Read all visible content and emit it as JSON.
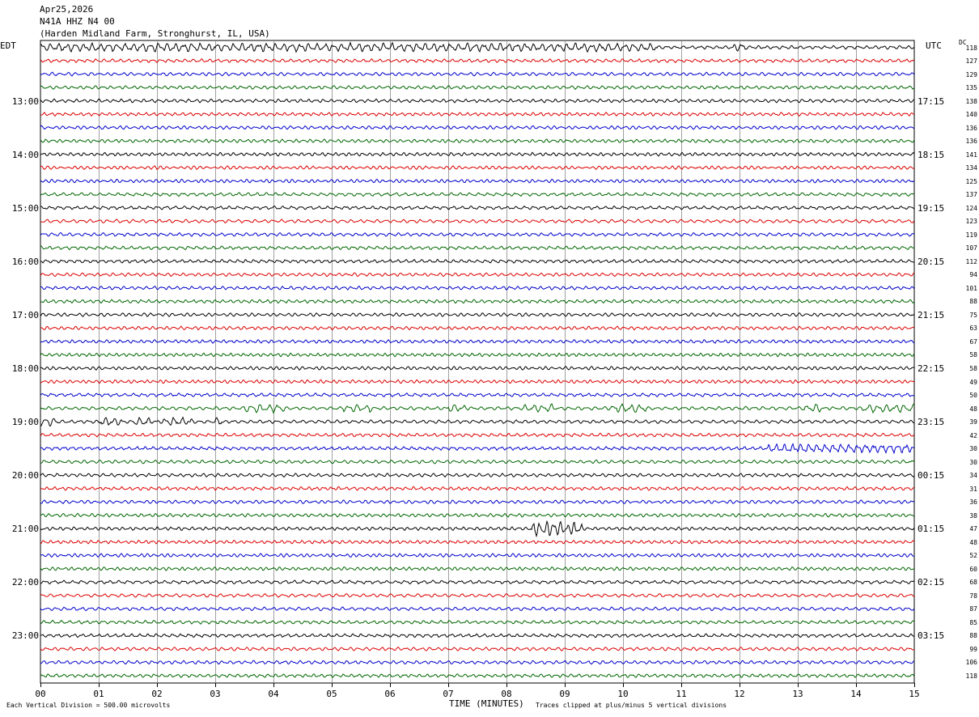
{
  "header": {
    "date": "Apr25,2026",
    "station": "N41A HHZ N4 00",
    "location": "(Harden Midland Farm, Stronghurst, IL, USA)"
  },
  "left_timezone": "EDT",
  "right_timezone": "UTC",
  "dc_label": "DC",
  "left_hours": [
    "13:00",
    "14:00",
    "15:00",
    "16:00",
    "17:00",
    "18:00",
    "19:00",
    "20:00",
    "21:00",
    "22:00",
    "23:00"
  ],
  "right_hours": [
    "17:15",
    "18:15",
    "19:15",
    "20:15",
    "21:15",
    "22:15",
    "23:15",
    "00:15",
    "01:15",
    "02:15",
    "03:15"
  ],
  "dc_values": [
    "118",
    "127",
    "129",
    "135",
    "138",
    "140",
    "136",
    "136",
    "141",
    "134",
    "125",
    "137",
    "124",
    "123",
    "119",
    "107",
    "112",
    "94",
    "101",
    "88",
    "75",
    "63",
    "67",
    "58",
    "58",
    "49",
    "50",
    "48",
    "39",
    "42",
    "30",
    "30",
    "34",
    "31",
    "36",
    "38",
    "47",
    "48",
    "52",
    "60",
    "68",
    "78",
    "87",
    "85",
    "88",
    "99",
    "106",
    "118"
  ],
  "x_ticks": [
    "00",
    "01",
    "02",
    "03",
    "04",
    "05",
    "06",
    "07",
    "08",
    "09",
    "10",
    "11",
    "12",
    "13",
    "14",
    "15"
  ],
  "footer": {
    "scale_note": "Each Vertical Division =  500.00 microvolts",
    "x_axis_label": "TIME (MINUTES)",
    "clip_note": "Traces clipped at plus/minus 5 vertical divisions"
  },
  "colors": {
    "trace_cycle": [
      "#000000",
      "#dd0000",
      "#0000cc",
      "#006600"
    ],
    "grid": "#888888"
  },
  "chart_data": {
    "type": "line",
    "title": "",
    "xlabel": "TIME (MINUTES)",
    "ylabel": "",
    "xlim": [
      0,
      15
    ],
    "traces_per_hour": 4,
    "trace_count": 48,
    "grid": true,
    "events": [
      {
        "trace_index": 0,
        "description": "bursty noise",
        "x_ranges": [
          [
            0,
            10.6
          ],
          [
            11.9,
            12.1
          ]
        ]
      },
      {
        "trace_index": 27,
        "description": "bursts",
        "x_ranges": [
          [
            3.5,
            4.2
          ],
          [
            5.2,
            5.7
          ],
          [
            7.0,
            7.3
          ],
          [
            8.3,
            8.8
          ],
          [
            9.8,
            10.4
          ],
          [
            13.1,
            13.4
          ],
          [
            14.1,
            15.0
          ]
        ]
      },
      {
        "trace_index": 28,
        "description": "spikes",
        "x_ranges": [
          [
            0.0,
            0.3
          ],
          [
            1.0,
            1.4
          ],
          [
            1.6,
            1.9
          ],
          [
            2.1,
            2.6
          ],
          [
            3.0,
            3.1
          ]
        ]
      },
      {
        "trace_index": 30,
        "description": "high amplitude noise",
        "x_ranges": [
          [
            12.5,
            15.0
          ]
        ]
      },
      {
        "trace_index": 36,
        "description": "local event",
        "x_ranges": [
          [
            8.4,
            9.3
          ]
        ]
      }
    ]
  }
}
